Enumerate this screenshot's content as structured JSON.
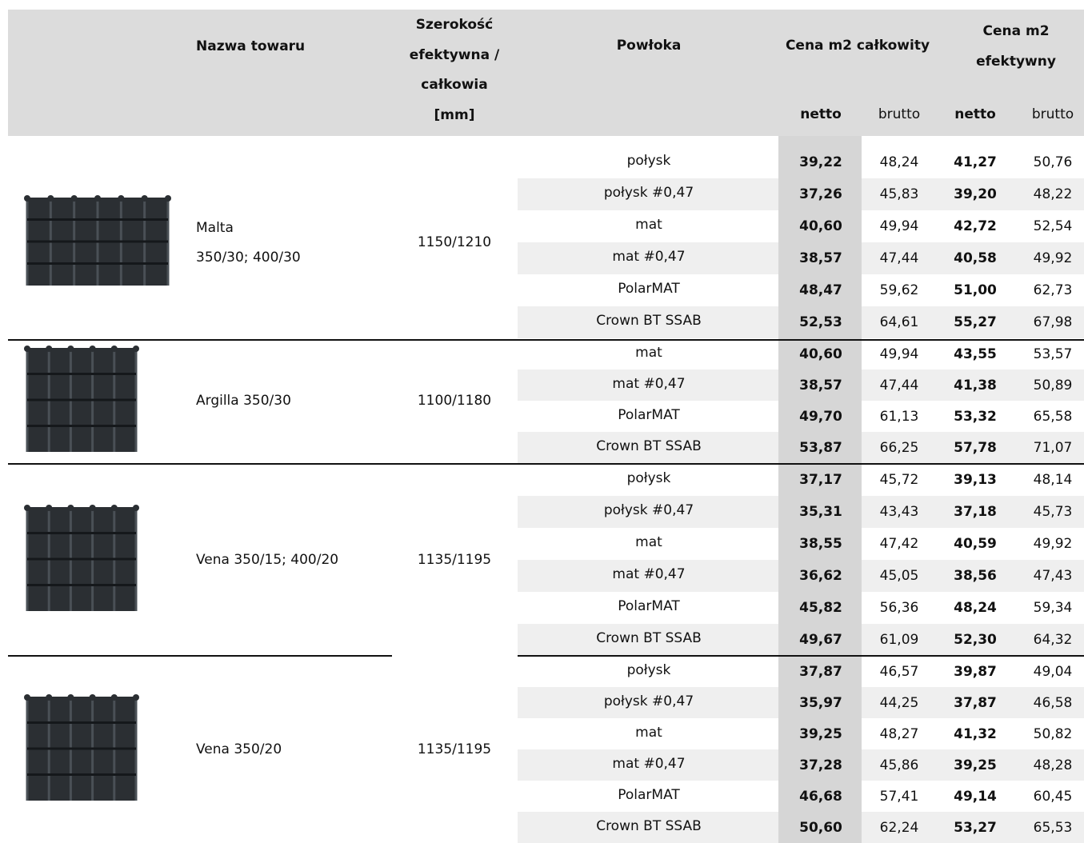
{
  "header": {
    "name": "Nazwa towaru",
    "width": [
      "Szerokość",
      "efektywna /",
      "całkowia",
      "[mm]"
    ],
    "coating": "Powłoka",
    "total": "Cena m2 całkowity",
    "effective": [
      "Cena m2",
      "efektywny"
    ],
    "sub": [
      "netto",
      "brutto",
      "netto",
      "brutto"
    ]
  },
  "groups": [
    {
      "name": [
        "Malta",
        "350/30; 400/30"
      ],
      "width": "1150/1210",
      "rows": [
        {
          "coating": "połysk",
          "prices": [
            "39,22",
            "48,24",
            "41,27",
            "50,76"
          ]
        },
        {
          "coating": "połysk #0,47",
          "prices": [
            "37,26",
            "45,83",
            "39,20",
            "48,22"
          ]
        },
        {
          "coating": "mat",
          "prices": [
            "40,60",
            "49,94",
            "42,72",
            "52,54"
          ]
        },
        {
          "coating": "mat #0,47",
          "prices": [
            "38,57",
            "47,44",
            "40,58",
            "49,92"
          ]
        },
        {
          "coating": "PolarMAT",
          "prices": [
            "48,47",
            "59,62",
            "51,00",
            "62,73"
          ]
        },
        {
          "coating": "Crown BT SSAB",
          "prices": [
            "52,53",
            "64,61",
            "55,27",
            "67,98"
          ]
        }
      ]
    },
    {
      "name": [
        "Argilla 350/30"
      ],
      "width": "1100/1180",
      "rows": [
        {
          "coating": "mat",
          "prices": [
            "40,60",
            "49,94",
            "43,55",
            "53,57"
          ]
        },
        {
          "coating": "mat #0,47",
          "prices": [
            "38,57",
            "47,44",
            "41,38",
            "50,89"
          ]
        },
        {
          "coating": "PolarMAT",
          "prices": [
            "49,70",
            "61,13",
            "53,32",
            "65,58"
          ]
        },
        {
          "coating": "Crown BT SSAB",
          "prices": [
            "53,87",
            "66,25",
            "57,78",
            "71,07"
          ]
        }
      ]
    },
    {
      "name": [
        "Vena 350/15; 400/20"
      ],
      "width": "1135/1195",
      "rows": [
        {
          "coating": "połysk",
          "prices": [
            "37,17",
            "45,72",
            "39,13",
            "48,14"
          ]
        },
        {
          "coating": "połysk #0,47",
          "prices": [
            "35,31",
            "43,43",
            "37,18",
            "45,73"
          ]
        },
        {
          "coating": "mat",
          "prices": [
            "38,55",
            "47,42",
            "40,59",
            "49,92"
          ]
        },
        {
          "coating": "mat #0,47",
          "prices": [
            "36,62",
            "45,05",
            "38,56",
            "47,43"
          ]
        },
        {
          "coating": "PolarMAT",
          "prices": [
            "45,82",
            "56,36",
            "48,24",
            "59,34"
          ]
        },
        {
          "coating": "Crown BT SSAB",
          "prices": [
            "49,67",
            "61,09",
            "52,30",
            "64,32"
          ]
        }
      ]
    },
    {
      "name": [
        "Vena 350/20"
      ],
      "width": "1135/1195",
      "rows": [
        {
          "coating": "połysk",
          "prices": [
            "37,87",
            "46,57",
            "39,87",
            "49,04"
          ]
        },
        {
          "coating": "połysk #0,47",
          "prices": [
            "35,97",
            "44,25",
            "37,87",
            "46,58"
          ]
        },
        {
          "coating": "mat",
          "prices": [
            "39,25",
            "48,27",
            "41,32",
            "50,82"
          ]
        },
        {
          "coating": "mat #0,47",
          "prices": [
            "37,28",
            "45,86",
            "39,25",
            "48,28"
          ]
        },
        {
          "coating": "PolarMAT",
          "prices": [
            "46,68",
            "57,41",
            "49,14",
            "60,45"
          ]
        },
        {
          "coating": "Crown BT SSAB",
          "prices": [
            "50,60",
            "62,24",
            "53,27",
            "65,53"
          ]
        }
      ]
    }
  ]
}
